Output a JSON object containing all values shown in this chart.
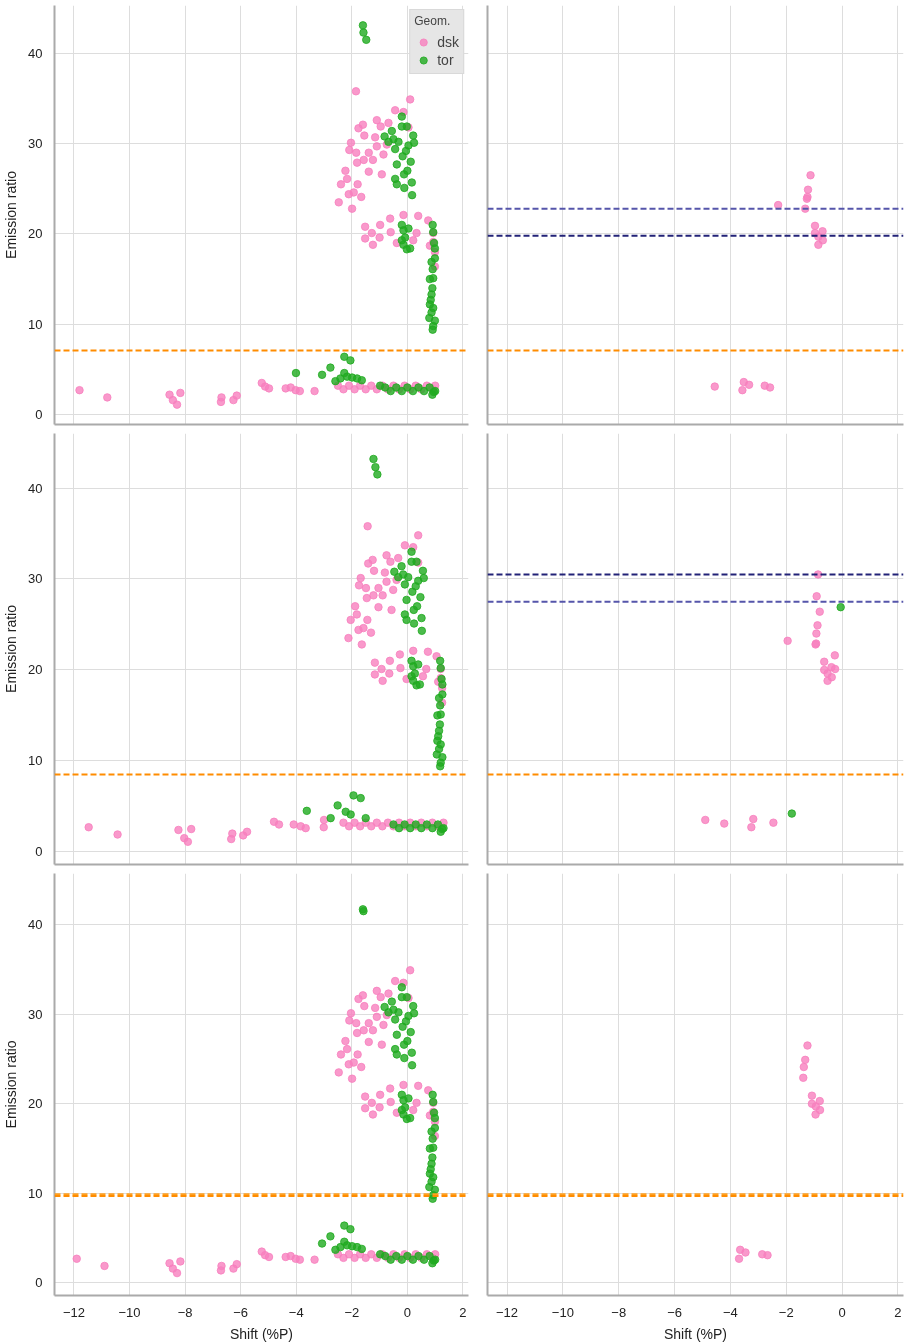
{
  "chart_data": [
    {
      "type": "scatter",
      "ylabel": "Emission ratio",
      "legend_title": "Geom.",
      "legend": "top right",
      "marker": "circle",
      "grid": true,
      "tick_labels": "y",
      "xlim": [
        -12.7,
        2.2
      ],
      "ylim": [
        -1.1,
        45.3
      ],
      "xticks": [
        -12,
        -10,
        -8,
        -6,
        -4,
        -2,
        0,
        2
      ],
      "yticks": [
        0,
        10,
        20,
        30,
        40
      ],
      "ref_lines": [
        {
          "axis": "y",
          "value": 7.1,
          "label": null,
          "color": "#ff8c00",
          "line_style": "dashed"
        }
      ],
      "series": [
        {
          "name": "dsk",
          "color": "#f77fbe",
          "x": [
            -11.8,
            -10.8,
            -8.56,
            -8.44,
            -8.29,
            -8.17,
            -6.71,
            -6.69,
            -6.26,
            -6.14,
            -5.24,
            -5.12,
            -4.98,
            -4.38,
            -4.2,
            -4.02,
            -3.87,
            -3.34,
            -2.5,
            -2.3,
            -2.1,
            -1.9,
            -1.7,
            -1.5,
            -1.3,
            -1.1,
            -0.9,
            -0.7,
            -0.5,
            -0.3,
            -0.1,
            0.1,
            0.3,
            0.5,
            0.7,
            0.9,
            1.0,
            -2.47,
            -2.39,
            -2.23,
            -2.17,
            -2.11,
            -2.09,
            -2.03,
            -1.99,
            -1.93,
            -1.84,
            -1.81,
            -1.79,
            -1.85,
            -1.76,
            -1.66,
            -1.6,
            -1.55,
            -1.57,
            -1.39,
            -1.39,
            -1.24,
            -1.16,
            -1.1,
            -1.1,
            -0.96,
            -0.92,
            -0.86,
            -0.68,
            -0.74,
            -0.44,
            -0.14,
            0.1,
            0.04,
            -1.52,
            -1.52,
            -1.28,
            -1.24,
            -1.0,
            -0.98,
            -0.62,
            -0.6,
            -0.38,
            -0.14,
            0.33,
            0.39,
            0.75,
            0.81,
            0.93,
            0.99,
            0.99,
            0.93,
            0.21
          ],
          "values": [
            2.7,
            1.9,
            2.2,
            1.6,
            1.1,
            2.4,
            1.4,
            1.9,
            1.6,
            2.1,
            3.5,
            3.1,
            2.9,
            2.9,
            3.0,
            2.7,
            2.6,
            2.6,
            3.2,
            2.8,
            3.2,
            2.8,
            3.2,
            2.8,
            3.2,
            2.8,
            3.2,
            2.8,
            3.2,
            2.8,
            3.2,
            2.8,
            3.2,
            2.8,
            3.2,
            2.8,
            3.2,
            23.5,
            25.5,
            27.0,
            26.1,
            24.4,
            29.3,
            30.1,
            22.8,
            24.6,
            29.0,
            27.9,
            25.5,
            35.8,
            31.7,
            24.1,
            32.1,
            30.9,
            28.2,
            26.9,
            29.0,
            28.2,
            30.7,
            32.6,
            29.7,
            31.9,
            26.6,
            28.8,
            32.3,
            29.9,
            33.7,
            33.5,
            34.9,
            31.8,
            20.8,
            19.5,
            20.1,
            18.8,
            19.6,
            21.0,
            21.7,
            20.2,
            19.0,
            22.1,
            20.1,
            22.0,
            21.5,
            18.7,
            20.1,
            18.0,
            16.4,
            19.1,
            19.3
          ]
        },
        {
          "name": "tor",
          "color": "#1faa1f",
          "x": [
            -1.6,
            -1.58,
            -1.48,
            -0.82,
            -0.68,
            -0.56,
            -0.5,
            -0.44,
            -0.38,
            -0.44,
            -0.38,
            -0.32,
            -0.2,
            -0.2,
            -0.17,
            -0.12,
            -0.11,
            -0.05,
            -0.02,
            0.0,
            0.04,
            0.12,
            0.16,
            0.17,
            0.21,
            0.24,
            -0.2,
            -0.14,
            -0.2,
            -0.14,
            -0.02,
            0.04,
            0.1,
            -0.08,
            0.91,
            0.93,
            0.96,
            0.99,
            0.99,
            0.87,
            0.91,
            0.93,
            0.81,
            0.9,
            0.87,
            0.84,
            0.81,
            0.93,
            0.87,
            0.79,
            0.99,
            0.93,
            0.91,
            -4.01,
            -3.07,
            -2.77,
            -2.59,
            -2.41,
            -2.27,
            -2.05,
            -2.27,
            -2.17,
            -1.99,
            -1.81,
            -1.64,
            -0.98,
            -0.8,
            -0.6,
            -0.4,
            -0.2,
            0.0,
            0.2,
            0.4,
            0.6,
            0.8,
            1.0,
            0.9,
            0.95
          ],
          "values": [
            43.1,
            42.3,
            41.5,
            30.8,
            30.2,
            31.4,
            30.5,
            29.4,
            27.7,
            26.1,
            25.5,
            30.2,
            33.0,
            31.9,
            28.6,
            26.6,
            25.1,
            29.2,
            31.9,
            27.0,
            29.8,
            28.0,
            25.7,
            24.3,
            30.9,
            30.1,
            21.0,
            20.4,
            19.3,
            18.8,
            18.3,
            20.6,
            18.4,
            19.6,
            21.0,
            20.2,
            19.0,
            18.4,
            17.3,
            16.9,
            16.1,
            15.1,
            15.0,
            14.0,
            13.3,
            12.7,
            12.2,
            11.8,
            11.3,
            10.7,
            10.4,
            9.8,
            9.4,
            4.6,
            4.4,
            5.2,
            3.7,
            4.0,
            6.4,
            6.0,
            4.6,
            4.2,
            4.1,
            4.0,
            3.8,
            3.2,
            3.0,
            2.6,
            3.0,
            2.6,
            3.0,
            2.6,
            3.0,
            2.6,
            3.0,
            2.6,
            2.2,
            2.5
          ]
        }
      ]
    },
    {
      "type": "scatter",
      "marker": "circle",
      "grid": true,
      "tick_labels": false,
      "xlim": [
        -12.7,
        2.2
      ],
      "ylim": [
        -1.1,
        45.3
      ],
      "xticks": [
        -12,
        -10,
        -8,
        -6,
        -4,
        -2,
        0,
        2
      ],
      "yticks": [
        0,
        10,
        20,
        30,
        40
      ],
      "ref_lines": [
        {
          "axis": "y",
          "value": 22.8,
          "label": null,
          "color": "#5555aa",
          "line_style": "dashed"
        },
        {
          "axis": "y",
          "value": 19.8,
          "label": null,
          "color": "#222277",
          "line_style": "dashed"
        },
        {
          "axis": "y",
          "value": 7.1,
          "label": null,
          "color": "#ff8c00",
          "line_style": "dashed"
        }
      ],
      "series": [
        {
          "color": "#f77fbe",
          "x": [
            -2.29,
            -1.13,
            -1.22,
            -1.24,
            -1.26,
            -1.32,
            -0.97,
            -0.7,
            -0.97,
            -0.85,
            -0.69,
            -0.85,
            -4.56,
            -3.52,
            -3.33,
            -3.57,
            -2.77,
            -2.58
          ],
          "values": [
            23.2,
            26.5,
            24.9,
            24.1,
            23.9,
            22.8,
            20.9,
            20.3,
            20.1,
            19.7,
            19.3,
            18.8,
            3.1,
            3.6,
            3.3,
            2.7,
            3.2,
            3.0
          ]
        }
      ]
    },
    {
      "type": "scatter",
      "ylabel": "Emission ratio",
      "marker": "circle",
      "grid": true,
      "tick_labels": "y",
      "xlim": [
        -12.7,
        2.2
      ],
      "ylim": [
        -1.4,
        46.0
      ],
      "xticks": [
        -12,
        -10,
        -8,
        -6,
        -4,
        -2,
        0,
        2
      ],
      "yticks": [
        0,
        10,
        20,
        30,
        40
      ],
      "ref_lines": [
        {
          "axis": "y",
          "value": 8.5,
          "label": null,
          "color": "#ff8c00",
          "line_style": "dashed"
        }
      ],
      "series": [
        {
          "color": "#f77fbe",
          "x": [
            -11.47,
            -10.43,
            -8.24,
            -8.03,
            -7.9,
            -7.78,
            -6.34,
            -6.3,
            -5.91,
            -5.77,
            -4.8,
            -4.62,
            -4.09,
            -3.84,
            -3.66,
            -3.01,
            -3.0,
            -2.3,
            -2.1,
            -1.9,
            -1.7,
            -1.5,
            -1.3,
            -1.1,
            -0.9,
            -0.7,
            -0.5,
            -0.3,
            -0.1,
            0.1,
            0.3,
            0.5,
            0.7,
            0.9,
            1.1,
            1.3,
            -2.12,
            -2.04,
            -1.88,
            -1.82,
            -1.76,
            -1.74,
            -1.68,
            -1.64,
            -1.58,
            -1.49,
            -1.46,
            -1.44,
            -1.43,
            -1.41,
            -1.31,
            -1.25,
            -1.2,
            -1.22,
            -1.04,
            -1.04,
            -0.89,
            -0.81,
            -0.75,
            -0.75,
            -0.61,
            -0.57,
            -0.51,
            -0.33,
            -0.39,
            -0.09,
            0.21,
            0.39,
            0.39,
            -1.17,
            -1.17,
            -0.93,
            -0.89,
            -0.65,
            -0.63,
            -0.27,
            -0.25,
            -0.03,
            0.21,
            0.68,
            0.74,
            1.05,
            1.11,
            1.2,
            1.25,
            1.25,
            1.2,
            0.56
          ],
          "values": [
            2.7,
            1.9,
            2.4,
            1.5,
            1.1,
            2.5,
            1.4,
            2.0,
            1.8,
            2.2,
            3.3,
            3.0,
            3.0,
            2.8,
            2.6,
            2.7,
            3.5,
            3.2,
            2.8,
            3.2,
            2.8,
            3.2,
            2.8,
            3.2,
            2.8,
            3.2,
            2.8,
            3.2,
            2.8,
            3.2,
            2.8,
            3.2,
            2.8,
            3.2,
            2.8,
            3.2,
            23.5,
            25.5,
            27.0,
            26.1,
            24.4,
            29.3,
            30.1,
            22.8,
            24.6,
            29.0,
            27.9,
            25.5,
            35.8,
            31.7,
            24.1,
            32.1,
            30.9,
            28.2,
            26.9,
            29.0,
            28.2,
            30.7,
            32.6,
            29.7,
            31.9,
            26.6,
            28.8,
            32.3,
            29.9,
            33.7,
            33.5,
            34.8,
            31.8,
            20.8,
            19.5,
            20.1,
            18.8,
            19.6,
            21.0,
            21.7,
            20.2,
            19.0,
            22.1,
            20.1,
            22.0,
            21.5,
            18.7,
            20.1,
            18.0,
            16.4,
            19.1,
            19.3
          ]
        },
        {
          "color": "#1faa1f",
          "x": [
            -1.22,
            -1.15,
            -1.08,
            -0.47,
            -0.33,
            -0.21,
            -0.15,
            -0.09,
            -0.03,
            -0.09,
            -0.03,
            0.03,
            0.15,
            0.15,
            0.18,
            0.23,
            0.24,
            0.3,
            0.33,
            0.35,
            0.39,
            0.47,
            0.51,
            0.52,
            0.56,
            0.59,
            0.15,
            0.21,
            0.15,
            0.21,
            0.33,
            0.39,
            0.45,
            0.27,
            1.18,
            1.2,
            1.23,
            1.26,
            1.26,
            1.14,
            1.18,
            1.2,
            1.08,
            1.17,
            1.14,
            1.11,
            1.08,
            1.2,
            1.14,
            1.06,
            1.26,
            1.2,
            1.18,
            -3.62,
            -2.76,
            -2.51,
            -2.22,
            -1.94,
            -1.68,
            -2.04,
            -1.5,
            -0.5,
            -0.3,
            -0.1,
            0.1,
            0.3,
            0.5,
            0.7,
            0.9,
            1.1,
            1.3,
            1.2,
            1.25
          ],
          "values": [
            43.2,
            42.3,
            41.5,
            30.8,
            30.2,
            31.4,
            30.5,
            29.4,
            27.7,
            26.1,
            25.5,
            30.2,
            33.0,
            31.9,
            28.6,
            26.6,
            25.1,
            29.2,
            31.9,
            27.0,
            29.8,
            28.0,
            25.7,
            24.3,
            30.9,
            30.1,
            21.0,
            20.4,
            19.3,
            18.8,
            18.3,
            20.6,
            18.4,
            19.6,
            21.0,
            20.2,
            19.0,
            18.4,
            17.3,
            16.9,
            16.1,
            15.1,
            15.0,
            14.0,
            13.3,
            12.7,
            12.2,
            11.8,
            11.3,
            10.7,
            10.4,
            9.8,
            9.4,
            4.5,
            3.7,
            5.1,
            4.4,
            6.2,
            5.9,
            4.1,
            3.7,
            3.0,
            2.6,
            3.0,
            2.6,
            3.0,
            2.6,
            3.0,
            2.6,
            3.0,
            2.6,
            2.2,
            2.5
          ]
        }
      ]
    },
    {
      "type": "scatter",
      "marker": "circle",
      "grid": true,
      "tick_labels": false,
      "xlim": [
        -12.7,
        2.2
      ],
      "ylim": [
        -1.4,
        46.0
      ],
      "xticks": [
        -12,
        -10,
        -8,
        -6,
        -4,
        -2,
        0,
        2
      ],
      "yticks": [
        0,
        10,
        20,
        30,
        40
      ],
      "ref_lines": [
        {
          "axis": "y",
          "value": 30.5,
          "label": null,
          "color": "#222277",
          "line_style": "dashed"
        },
        {
          "axis": "y",
          "value": 27.5,
          "label": null,
          "color": "#5555aa",
          "line_style": "dashed"
        },
        {
          "axis": "y",
          "value": 8.5,
          "label": null,
          "color": "#ff8c00",
          "line_style": "dashed"
        }
      ],
      "series": [
        {
          "color": "#f77fbe",
          "x": [
            -0.86,
            -0.91,
            -0.8,
            -0.88,
            -0.92,
            -1.95,
            -0.95,
            -0.93,
            -0.26,
            -0.64,
            -0.38,
            -0.64,
            -0.25,
            -0.52,
            -0.37,
            -0.52,
            -4.9,
            -4.22,
            -3.18,
            -3.25,
            -2.46
          ],
          "values": [
            30.5,
            28.1,
            26.4,
            24.9,
            24.0,
            23.2,
            22.8,
            22.9,
            21.6,
            20.9,
            20.3,
            20.0,
            20.1,
            19.6,
            19.2,
            18.8,
            3.5,
            3.1,
            3.6,
            2.7,
            3.2
          ]
        },
        {
          "color": "#1faa1f",
          "x": [
            -0.05,
            -1.8
          ],
          "values": [
            26.9,
            4.2
          ]
        }
      ]
    },
    {
      "type": "scatter",
      "xlabel": "Shift (%P)",
      "ylabel": "Emission ratio",
      "marker": "circle",
      "grid": true,
      "xlim": [
        -12.7,
        2.2
      ],
      "ylim": [
        -1.4,
        45.7
      ],
      "xticks": [
        {
          "value": -12,
          "label": "−12"
        },
        {
          "value": -10,
          "label": "−10"
        },
        {
          "value": -8,
          "label": "−8"
        },
        {
          "value": -6,
          "label": "−6"
        },
        {
          "value": -4,
          "label": "−4"
        },
        {
          "value": -2,
          "label": "−2"
        },
        0,
        2
      ],
      "yticks": [
        0,
        10,
        20,
        30,
        40
      ],
      "ref_lines": [
        {
          "axis": "y",
          "value": 9.9,
          "label": null,
          "color": "#ffa020",
          "line_style": "dashed"
        },
        {
          "axis": "y",
          "value": 9.7,
          "label": null,
          "color": "#ff8c00",
          "line_style": "dashed"
        }
      ],
      "series": [
        {
          "color": "#f77fbe",
          "x": [
            -11.9,
            -10.9,
            -8.56,
            -8.44,
            -8.29,
            -8.17,
            -6.71,
            -6.69,
            -6.26,
            -6.14,
            -5.24,
            -5.12,
            -4.98,
            -4.38,
            -4.2,
            -4.02,
            -3.87,
            -3.34,
            -2.5,
            -2.3,
            -2.1,
            -1.9,
            -1.7,
            -1.5,
            -1.3,
            -1.1,
            -0.9,
            -0.7,
            -0.5,
            -0.3,
            -0.1,
            0.1,
            0.3,
            0.5,
            0.7,
            0.9,
            1.0,
            -2.47,
            -2.39,
            -2.23,
            -2.17,
            -2.11,
            -2.09,
            -2.03,
            -1.99,
            -1.93,
            -1.84,
            -1.81,
            -1.79,
            -1.76,
            -1.66,
            -1.6,
            -1.55,
            -1.57,
            -1.39,
            -1.39,
            -1.24,
            -1.16,
            -1.1,
            -1.1,
            -0.96,
            -0.92,
            -0.86,
            -0.68,
            -0.74,
            -0.44,
            -0.14,
            0.1,
            0.04,
            -1.52,
            -1.52,
            -1.28,
            -1.24,
            -1.0,
            -0.98,
            -0.62,
            -0.6,
            -0.38,
            -0.14,
            0.33,
            0.39,
            0.75,
            0.81,
            0.93,
            0.99,
            0.99,
            0.93,
            0.21
          ],
          "values": [
            2.7,
            1.9,
            2.2,
            1.6,
            1.1,
            2.4,
            1.4,
            1.9,
            1.6,
            2.1,
            3.5,
            3.1,
            2.9,
            2.9,
            3.0,
            2.7,
            2.6,
            2.6,
            3.2,
            2.8,
            3.2,
            2.8,
            3.2,
            2.8,
            3.2,
            2.8,
            3.2,
            2.8,
            3.2,
            2.8,
            3.2,
            2.8,
            3.2,
            2.8,
            3.2,
            2.8,
            3.2,
            23.5,
            25.5,
            27.0,
            26.1,
            24.4,
            29.3,
            30.1,
            22.8,
            24.6,
            29.0,
            27.9,
            25.5,
            31.7,
            24.1,
            32.1,
            30.9,
            28.2,
            26.9,
            29.0,
            28.2,
            30.7,
            32.6,
            29.7,
            31.9,
            26.6,
            28.8,
            32.3,
            29.9,
            33.7,
            33.5,
            34.9,
            31.8,
            20.8,
            19.5,
            20.1,
            18.8,
            19.6,
            21.0,
            21.7,
            20.2,
            19.0,
            22.1,
            20.1,
            22.0,
            21.5,
            18.7,
            20.1,
            18.0,
            16.4,
            19.1,
            19.3
          ]
        },
        {
          "color": "#1faa1f",
          "x": [
            -1.6,
            -1.58,
            -0.82,
            -0.68,
            -0.56,
            -0.5,
            -0.44,
            -0.38,
            -0.44,
            -0.38,
            -0.32,
            -0.2,
            -0.2,
            -0.17,
            -0.12,
            -0.11,
            -0.05,
            -0.02,
            0.0,
            0.04,
            0.12,
            0.16,
            0.17,
            0.21,
            0.24,
            -0.2,
            -0.14,
            -0.2,
            -0.14,
            -0.02,
            0.04,
            0.1,
            -0.08,
            0.91,
            0.93,
            0.96,
            0.99,
            0.99,
            0.87,
            0.91,
            0.93,
            0.81,
            0.9,
            0.87,
            0.84,
            0.81,
            0.93,
            0.87,
            0.79,
            0.99,
            0.93,
            0.91,
            -3.07,
            -2.77,
            -2.59,
            -2.41,
            -2.27,
            -2.05,
            -2.27,
            -2.17,
            -1.99,
            -1.81,
            -1.64,
            -0.98,
            -0.8,
            -0.6,
            -0.4,
            -0.2,
            0.0,
            0.2,
            0.4,
            0.6,
            0.8,
            1.0,
            0.9,
            0.95
          ],
          "values": [
            41.7,
            41.5,
            30.8,
            30.2,
            31.4,
            30.5,
            29.4,
            27.7,
            26.1,
            25.5,
            30.2,
            33.0,
            31.9,
            28.6,
            26.6,
            25.1,
            29.2,
            31.9,
            27.0,
            29.8,
            28.0,
            25.7,
            24.3,
            30.9,
            30.1,
            21.0,
            20.4,
            19.3,
            18.8,
            18.3,
            20.6,
            18.4,
            19.6,
            21.0,
            20.2,
            19.0,
            18.4,
            17.3,
            16.9,
            16.1,
            15.1,
            15.0,
            14.0,
            13.3,
            12.7,
            12.2,
            11.8,
            11.3,
            10.7,
            10.4,
            9.8,
            9.4,
            4.4,
            5.2,
            3.7,
            4.0,
            6.4,
            6.0,
            4.6,
            4.2,
            4.1,
            4.0,
            3.8,
            3.2,
            3.0,
            2.6,
            3.0,
            2.6,
            3.0,
            2.6,
            3.0,
            2.6,
            3.0,
            2.6,
            2.2,
            2.5
          ]
        }
      ]
    },
    {
      "type": "scatter",
      "xlabel": "Shift (%P)",
      "marker": "circle",
      "grid": true,
      "tick_labels": "x",
      "xlim": [
        -12.7,
        2.2
      ],
      "ylim": [
        -1.4,
        45.7
      ],
      "xticks": [
        {
          "value": -12,
          "label": "−12"
        },
        {
          "value": -10,
          "label": "−10"
        },
        {
          "value": -8,
          "label": "−8"
        },
        {
          "value": -6,
          "label": "−6"
        },
        {
          "value": -4,
          "label": "−4"
        },
        {
          "value": -2,
          "label": "−2"
        },
        0,
        2
      ],
      "yticks": [
        0,
        10,
        20,
        30,
        40
      ],
      "ref_lines": [
        {
          "axis": "y",
          "value": 9.9,
          "label": null,
          "color": "#ffa020",
          "line_style": "dashed"
        },
        {
          "axis": "y",
          "value": 9.7,
          "label": null,
          "color": "#ff8c00",
          "line_style": "dashed"
        }
      ],
      "series": [
        {
          "color": "#f77fbe",
          "x": [
            -1.24,
            -1.32,
            -1.37,
            -1.39,
            -1.08,
            -0.8,
            -1.08,
            -0.94,
            -0.79,
            -0.95,
            -3.65,
            -3.46,
            -3.69,
            -2.86,
            -2.67
          ],
          "values": [
            26.5,
            24.9,
            24.1,
            22.9,
            20.9,
            20.3,
            20.0,
            19.7,
            19.3,
            18.8,
            3.7,
            3.4,
            2.7,
            3.2,
            3.1
          ]
        }
      ]
    }
  ]
}
